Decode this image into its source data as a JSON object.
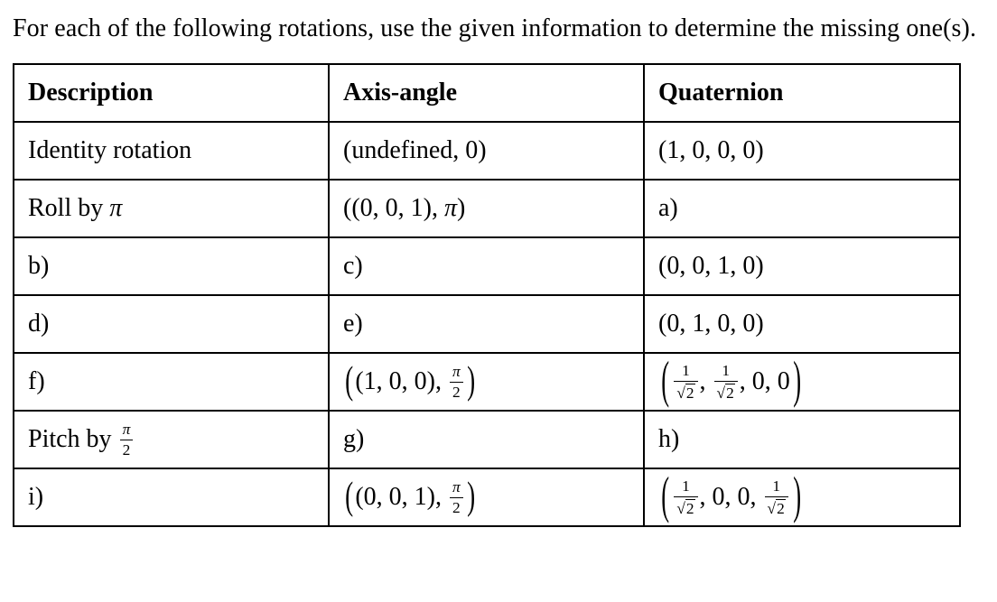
{
  "colors": {
    "text": "#000000",
    "background": "#ffffff",
    "border": "#000000"
  },
  "page": {
    "intro": "For each of the following rotations, use the given information to determine the missing one(s)."
  },
  "table": {
    "headers": [
      "Description",
      "Axis-angle",
      "Quaternion"
    ],
    "rows": [
      {
        "description": [
          {
            "t": "Identity rotation"
          }
        ],
        "axis_angle": [
          {
            "t": "(undefined, 0)"
          }
        ],
        "quaternion": [
          {
            "t": "(1, 0, 0, 0)"
          }
        ]
      },
      {
        "description": [
          {
            "t": "Roll by "
          },
          {
            "i": "π"
          }
        ],
        "axis_angle": [
          {
            "t": "((0, 0, 1), "
          },
          {
            "i": "π"
          },
          {
            "t": ")"
          }
        ],
        "quaternion": [
          {
            "t": "a)"
          }
        ]
      },
      {
        "description": [
          {
            "t": "b)"
          }
        ],
        "axis_angle": [
          {
            "t": "c)"
          }
        ],
        "quaternion": [
          {
            "t": "(0, 0, 1, 0)"
          }
        ]
      },
      {
        "description": [
          {
            "t": "d)"
          }
        ],
        "axis_angle": [
          {
            "t": "e)"
          }
        ],
        "quaternion": [
          {
            "t": "(0, 1, 0, 0)"
          }
        ]
      },
      {
        "description": [
          {
            "t": "f)"
          }
        ],
        "axis_angle": [
          {
            "m": "("
          },
          {
            "t": "(1, 0, 0), "
          },
          {
            "f": {
              "n": "π",
              "d": "2",
              "ni": true
            }
          },
          {
            "m": ")"
          }
        ],
        "quaternion": [
          {
            "b": "("
          },
          {
            "f": {
              "n": "1",
              "d": "2",
              "sqrt": true
            }
          },
          {
            "t": ", "
          },
          {
            "f": {
              "n": "1",
              "d": "2",
              "sqrt": true
            }
          },
          {
            "t": ", 0, 0"
          },
          {
            "b": ")"
          }
        ]
      },
      {
        "description": [
          {
            "t": "Pitch by "
          },
          {
            "f": {
              "n": "π",
              "d": "2",
              "ni": true
            }
          }
        ],
        "axis_angle": [
          {
            "t": "g)"
          }
        ],
        "quaternion": [
          {
            "t": "h)"
          }
        ]
      },
      {
        "description": [
          {
            "t": "i)"
          }
        ],
        "axis_angle": [
          {
            "m": "("
          },
          {
            "t": "(0, 0, 1), "
          },
          {
            "f": {
              "n": "π",
              "d": "2",
              "ni": true
            }
          },
          {
            "m": ")"
          }
        ],
        "quaternion": [
          {
            "b": "("
          },
          {
            "f": {
              "n": "1",
              "d": "2",
              "sqrt": true
            }
          },
          {
            "t": ", 0, 0, "
          },
          {
            "f": {
              "n": "1",
              "d": "2",
              "sqrt": true
            }
          },
          {
            "b": ")"
          }
        ]
      }
    ]
  }
}
